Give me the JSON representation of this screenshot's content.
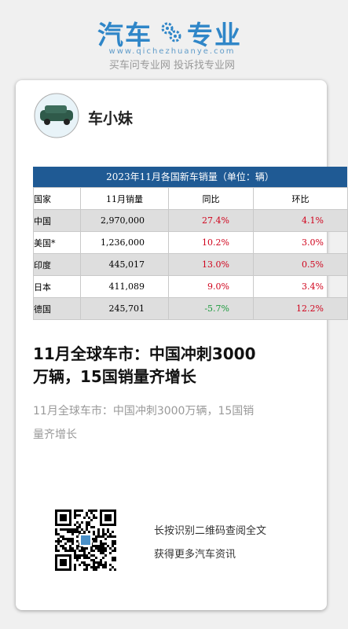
{
  "header": {
    "logo_left": "汽车",
    "logo_right": "专业",
    "url": "www.qichezhuanye.com",
    "tagline": "买车问专业网 投诉找专业网"
  },
  "author": {
    "name": "车小妹"
  },
  "table": {
    "title": "2023年11月各国新车销量（单位：辆）",
    "columns": [
      "国家",
      "11月销量",
      "同比",
      "环比"
    ],
    "rows": [
      [
        "中国",
        "2,970,000",
        "27.4%",
        "4.1%"
      ],
      [
        "美国*",
        "1,236,000",
        "10.2%",
        "3.0%"
      ],
      [
        "印度",
        "445,017",
        "13.0%",
        "0.5%"
      ],
      [
        "日本",
        "411,089",
        "9.0%",
        "3.4%"
      ],
      [
        "德国",
        "245,701",
        "-5.7%",
        "12.2%"
      ]
    ]
  },
  "article": {
    "title": "11月全球车市：中国冲刺3000万辆，15国销量齐增长",
    "summary": "11月全球车市：中国冲刺3000万辆，15国销量齐增长"
  },
  "footer": {
    "line1": "长按识别二维码查阅全文",
    "line2": "获得更多汽车资讯"
  }
}
